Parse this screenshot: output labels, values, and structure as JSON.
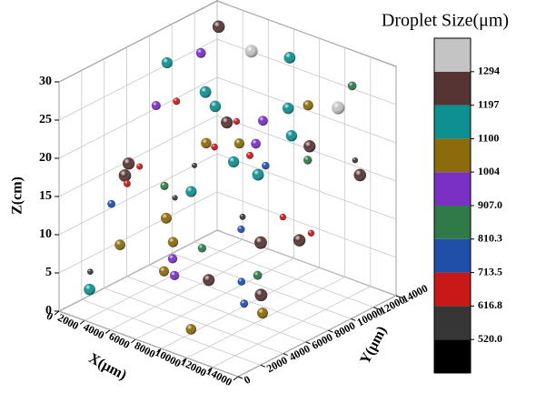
{
  "chart_data": {
    "type": "scatter3d",
    "title": "Droplet Size(μm)",
    "xlabel": "X(μm)",
    "ylabel": "Y(μm)",
    "zlabel": "Z(cm)",
    "xlim": [
      0,
      14000
    ],
    "xticks": [
      0,
      2000,
      4000,
      6000,
      8000,
      10000,
      12000,
      14000
    ],
    "ylim": [
      0,
      14000
    ],
    "yticks": [
      0,
      2000,
      4000,
      6000,
      8000,
      10000,
      12000,
      14000
    ],
    "zlim": [
      0,
      30
    ],
    "zticks": [
      0,
      5,
      10,
      15,
      20,
      25,
      30
    ],
    "grid": true,
    "colorbar": {
      "lim": [
        423.25,
        1390.75
      ],
      "ticks": [
        {
          "value": 520,
          "label": "520.0"
        },
        {
          "value": 616.8,
          "label": "616.8"
        },
        {
          "value": 713.5,
          "label": "713.5"
        },
        {
          "value": 810.3,
          "label": "810.3"
        },
        {
          "value": 907,
          "label": "907.0"
        },
        1004,
        1100,
        1197,
        1294
      ],
      "colors": [
        "#000000",
        "#363636",
        "#c81818",
        "#1f4fa8",
        "#2f7a48",
        "#7a30c4",
        "#8c6b0c",
        "#0f9090",
        "#573434",
        "#c4c4c4"
      ]
    },
    "series": [
      {
        "name": "Droplet Size(μm)",
        "x": [
          1000,
          500,
          2500,
          3000,
          1500,
          4000,
          6000,
          8000,
          9000,
          11000,
          12500,
          2000,
          3500,
          5000,
          7000,
          10000,
          13000,
          1000,
          4500,
          6500,
          8500,
          11500,
          2500,
          5500,
          9500,
          12000,
          3000,
          7500,
          10500,
          13500,
          1500,
          4000,
          6000,
          8000,
          11000,
          2000,
          5000,
          9000,
          12500,
          3500,
          7000,
          10000,
          500,
          6500,
          13000,
          2500,
          8500,
          4500,
          11500,
          5500,
          1000,
          9500,
          3000,
          7500,
          12000,
          6000,
          10500,
          2000,
          8000,
          4000
        ],
        "y": [
          13000,
          12000,
          11000,
          13500,
          10000,
          12500,
          11500,
          13000,
          12000,
          13500,
          12500,
          8000,
          9000,
          7000,
          9500,
          8500,
          10000,
          6000,
          5000,
          7500,
          6500,
          9000,
          3000,
          4000,
          5500,
          7000,
          2000,
          3500,
          4500,
          6000,
          1000,
          1500,
          2500,
          1000,
          3000,
          500,
          500,
          1500,
          2000,
          12000,
          12500,
          11000,
          9000,
          10500,
          11500,
          6500,
          8000,
          3500,
          5000,
          9500,
          3500,
          2500,
          7000,
          1000,
          4000,
          13500,
          6000,
          11500,
          9000,
          8500
        ],
        "z": [
          28,
          25,
          20,
          12,
          9,
          27,
          14,
          22,
          18,
          26,
          16,
          10,
          24,
          6,
          19,
          12,
          27,
          15,
          8,
          23,
          11,
          20,
          17,
          5,
          14,
          25,
          9,
          21,
          4,
          13,
          3,
          18,
          7,
          11,
          24,
          6,
          22,
          2,
          10,
          15,
          28,
          8,
          26,
          5,
          19,
          13,
          17,
          27,
          3,
          21,
          12,
          8,
          24,
          16,
          9,
          20,
          4,
          14,
          23,
          18
        ],
        "size": [
          1250,
          980,
          1150,
          700,
          1120,
          1300,
          760,
          1030,
          1220,
          880,
          1250,
          540,
          1180,
          840,
          970,
          650,
          1320,
          620,
          1040,
          1210,
          730,
          860,
          1260,
          930,
          600,
          1140,
          1070,
          520,
          790,
          1240,
          1160,
          690,
          1010,
          940,
          1130,
          580,
          1230,
          1060,
          760,
          1020,
          1170,
          650,
          1110,
          1280,
          560,
          830,
          1190,
          920,
          1100,
          640,
          780,
          1200,
          710,
          1090,
          890,
          1150,
          1270,
          670,
          980,
          1050
        ]
      }
    ]
  }
}
